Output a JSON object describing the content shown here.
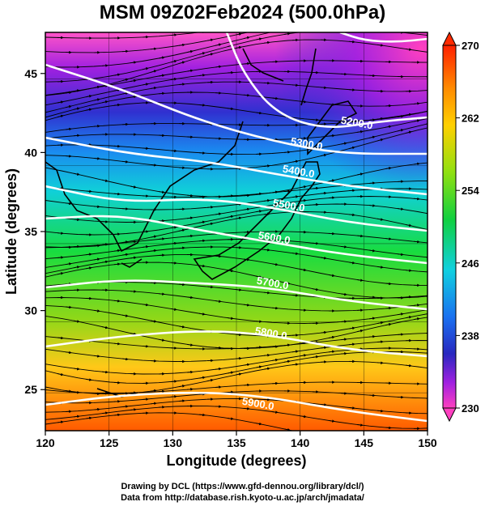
{
  "title": "MSM 09Z02Feb2024 (500.0hPa)",
  "x_axis": {
    "label": "Longitude (degrees)",
    "range": [
      120,
      150
    ],
    "ticks": [
      "120",
      "125",
      "130",
      "135",
      "140",
      "145",
      "150"
    ]
  },
  "y_axis": {
    "label": "Latitude  (degrees)",
    "range": [
      22.4,
      47.6
    ],
    "ticks": [
      "25",
      "30",
      "35",
      "40",
      "45"
    ]
  },
  "colorbar": {
    "range": [
      230,
      270
    ],
    "ticks": [
      "270",
      "262",
      "254",
      "246",
      "238",
      "230"
    ]
  },
  "contours": [
    {
      "label": "5200.0",
      "color": "#ffffff"
    },
    {
      "label": "5300.0",
      "color": "#ffffff"
    },
    {
      "label": "5400.0",
      "color": "#ffffff"
    },
    {
      "label": "5500.0",
      "color": "#ffffff"
    },
    {
      "label": "5600.0",
      "color": "#ffffff"
    },
    {
      "label": "5700.0",
      "color": "#ffffff"
    },
    {
      "label": "5800.0",
      "color": "#ffffff"
    },
    {
      "label": "5900.0",
      "color": "#ffffff"
    }
  ],
  "credits": {
    "line1": "Drawing by DCL (https://www.gfd-dennou.org/library/dcl/)",
    "line2": "Data from http://database.rish.kyoto-u.ac.jp/arch/jmadata/"
  }
}
